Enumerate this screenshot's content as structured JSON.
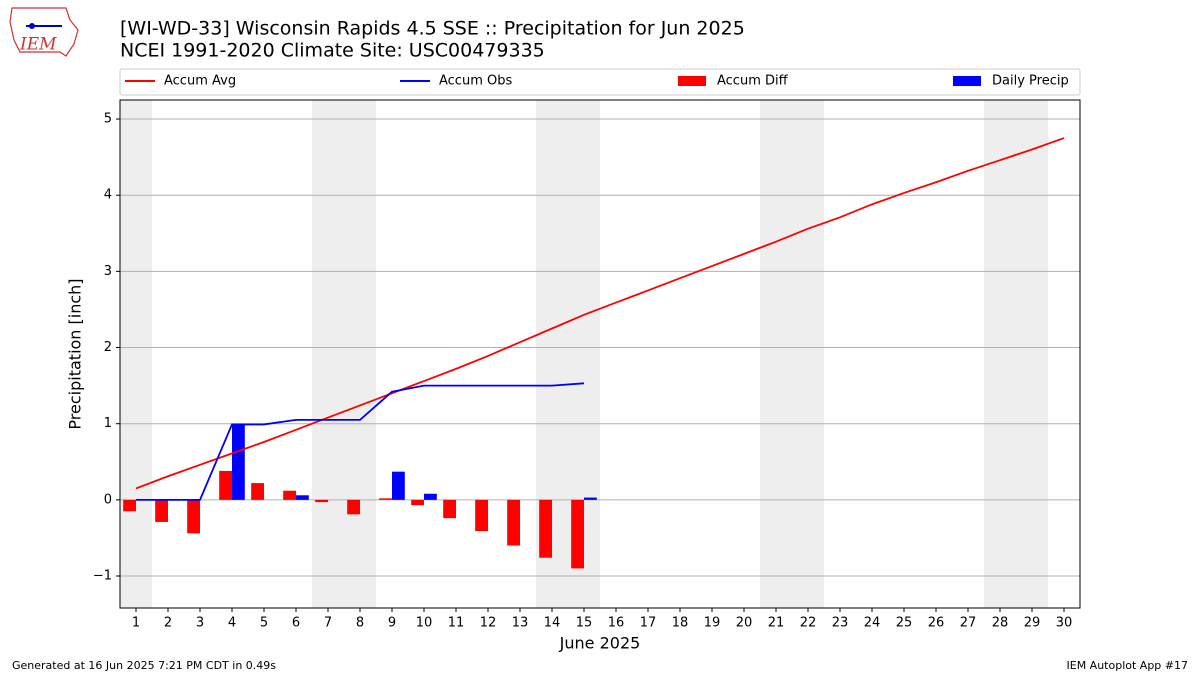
{
  "logo_text": "IEM",
  "footer_left": "Generated at 16 Jun 2025 7:21 PM CDT in 0.49s",
  "footer_right": "IEM Autoplot App #17",
  "chart_data": {
    "type": "combo",
    "title": "[WI-WD-33] Wisconsin Rapids 4.5 SSE :: Precipitation for Jun 2025",
    "subtitle": "NCEI 1991-2020 Climate Site: USC00479335",
    "xlabel": "June 2025",
    "ylabel": "Precipitation [inch]",
    "x": [
      1,
      2,
      3,
      4,
      5,
      6,
      7,
      8,
      9,
      10,
      11,
      12,
      13,
      14,
      15,
      16,
      17,
      18,
      19,
      20,
      21,
      22,
      23,
      24,
      25,
      26,
      27,
      28,
      29,
      30
    ],
    "xlim": [
      0.5,
      30.5
    ],
    "xticks": [
      1,
      2,
      3,
      4,
      5,
      6,
      7,
      8,
      9,
      10,
      11,
      12,
      13,
      14,
      15,
      16,
      17,
      18,
      19,
      20,
      21,
      22,
      23,
      24,
      25,
      26,
      27,
      28,
      29,
      30
    ],
    "ylim": [
      -1.42,
      5.25
    ],
    "yticks": [
      {
        "value": -1,
        "label": "−1"
      },
      0,
      1,
      2,
      3,
      4,
      5
    ],
    "grid": true,
    "shaded_days": [
      1,
      7,
      8,
      14,
      15,
      21,
      22,
      28,
      29
    ],
    "shade_color": "#eeeeee",
    "series": [
      {
        "name": "Accum Avg",
        "kind": "line",
        "color": "#ff0000",
        "values": [
          0.15,
          0.31,
          0.46,
          0.61,
          0.76,
          0.92,
          1.08,
          1.24,
          1.4,
          1.56,
          1.72,
          1.89,
          2.07,
          2.25,
          2.43,
          2.59,
          2.75,
          2.91,
          3.07,
          3.23,
          3.39,
          3.56,
          3.71,
          3.88,
          4.03,
          4.17,
          4.32,
          4.46,
          4.6,
          4.75
        ]
      },
      {
        "name": "Accum Obs",
        "kind": "line",
        "color": "#0000ff",
        "values": [
          0,
          0,
          0,
          0.99,
          0.99,
          1.05,
          1.05,
          1.05,
          1.42,
          1.5,
          1.5,
          1.5,
          1.5,
          1.5,
          1.53,
          null,
          null,
          null,
          null,
          null,
          null,
          null,
          null,
          null,
          null,
          null,
          null,
          null,
          null,
          null
        ]
      },
      {
        "name": "Accum Diff",
        "kind": "bar",
        "color": "#ff0000",
        "values": [
          -0.15,
          -0.29,
          -0.44,
          0.38,
          0.22,
          0.12,
          -0.03,
          -0.19,
          0.02,
          -0.07,
          -0.24,
          -0.41,
          -0.6,
          -0.76,
          -0.9,
          null,
          null,
          null,
          null,
          null,
          null,
          null,
          null,
          null,
          null,
          null,
          null,
          null,
          null,
          null
        ]
      },
      {
        "name": "Daily Precip",
        "kind": "bar",
        "color": "#0000ff",
        "values": [
          0,
          0,
          0,
          0.99,
          0,
          0.06,
          0,
          0,
          0.37,
          0.08,
          0,
          0,
          0,
          0,
          0.03,
          null,
          null,
          null,
          null,
          null,
          null,
          null,
          null,
          null,
          null,
          null,
          null,
          null,
          null,
          null
        ]
      }
    ]
  }
}
